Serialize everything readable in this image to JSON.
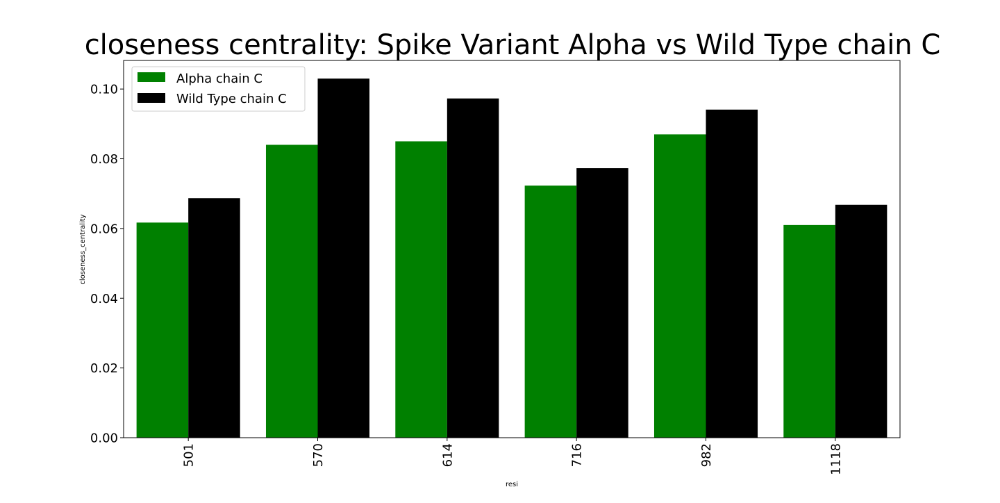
{
  "chart_data": {
    "type": "bar",
    "title": "closeness centrality: Spike Variant Alpha vs Wild Type chain C",
    "xlabel": "resi",
    "ylabel": "closeness_centrality",
    "categories": [
      "501",
      "570",
      "614",
      "716",
      "982",
      "1118"
    ],
    "series": [
      {
        "name": "Alpha chain C",
        "color": "#008000",
        "values": [
          0.0617,
          0.084,
          0.085,
          0.0723,
          0.087,
          0.061
        ]
      },
      {
        "name": "Wild Type chain C",
        "color": "#000000",
        "values": [
          0.0687,
          0.103,
          0.0973,
          0.0773,
          0.0941,
          0.0668
        ]
      }
    ],
    "ylim": [
      0,
      0.1082
    ],
    "yticks": [
      0.0,
      0.02,
      0.04,
      0.06,
      0.08,
      0.1
    ],
    "ytick_labels": [
      "0.00",
      "0.02",
      "0.04",
      "0.06",
      "0.08",
      "0.10"
    ],
    "xtick_rotation": "vertical",
    "legend_position": "top-left",
    "grid": false
  }
}
